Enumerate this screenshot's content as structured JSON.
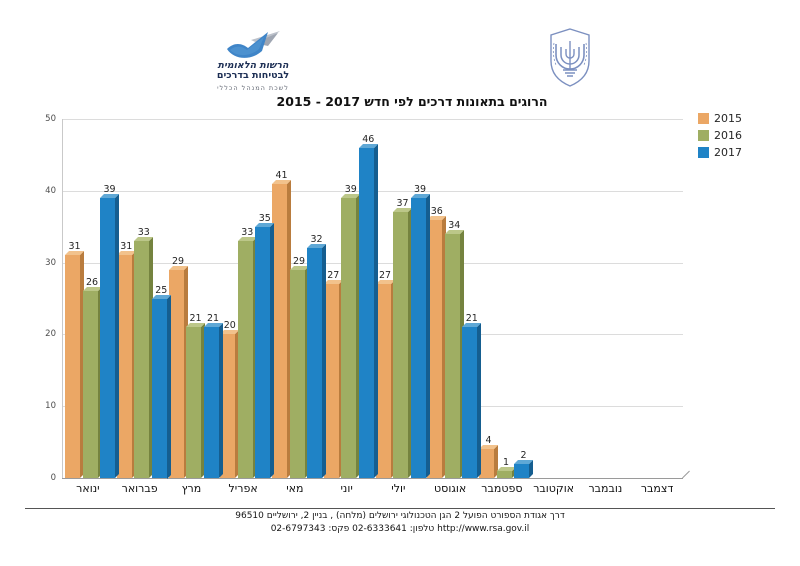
{
  "header": {
    "org_logo": {
      "line1": "הרשות הלאומית",
      "line2": "לבטיחות בדרכים",
      "line3": "לשכת המנהל הכללי"
    },
    "emblem_name": "israel-state-emblem"
  },
  "title": "הרוגים בתאונות דרכים לפי חדש 2017 - 2015",
  "chart_data": {
    "type": "bar",
    "title": "הרוגים בתאונות דרכים לפי חדש 2017 - 2015",
    "categories": [
      "ינואר",
      "פברואר",
      "מרץ",
      "אפריל",
      "מאי",
      "יוני",
      "יולי",
      "אוגוסט",
      "ספטמבר",
      "אוקטובר",
      "נובמבר",
      "דצמבר"
    ],
    "series": [
      {
        "name": "2015",
        "color": "#EBA765",
        "shade": "#B97C3E",
        "top": "#F2C28C",
        "values": [
          31,
          31,
          29,
          20,
          41,
          27,
          27,
          36,
          4,
          null,
          null,
          null
        ]
      },
      {
        "name": "2016",
        "color": "#9FAE63",
        "shade": "#75833F",
        "top": "#BCC789",
        "values": [
          26,
          33,
          21,
          33,
          29,
          39,
          37,
          34,
          1,
          null,
          null,
          null
        ]
      },
      {
        "name": "2017",
        "color": "#1F83C6",
        "shade": "#155E90",
        "top": "#5FA8D6",
        "values": [
          39,
          25,
          21,
          35,
          32,
          46,
          39,
          21,
          2,
          null,
          null,
          null
        ]
      }
    ],
    "xlabel": "",
    "ylabel": "",
    "ylim": [
      0,
      50
    ],
    "yticks": [
      0,
      10,
      20,
      30,
      40,
      50
    ],
    "grid": true,
    "legend_position": "top-right",
    "bar_labels_shown": true
  },
  "footer": {
    "line1": "דרך אגודת הספורט הפועל 2 הגן הטכנולוגי ירושלים (מלחה) , בניין 2, ירושליים 96510",
    "line2": "http://www.rsa.gov.il טלפון: 02-6333641 פקס: 02-6797343"
  }
}
